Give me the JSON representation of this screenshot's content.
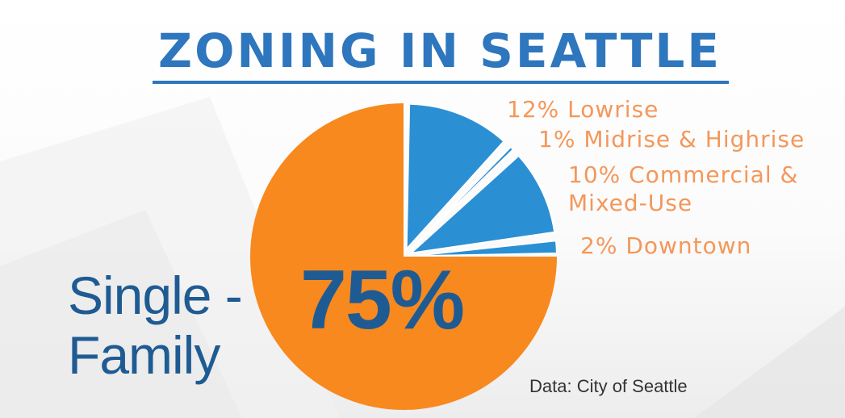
{
  "slide": {
    "title": "ZONING IN SEATTLE",
    "main_category_line1": "Single -",
    "main_category_line2": "Family",
    "main_percent": "75%",
    "source": "Data: City of Seattle"
  },
  "chart_data": {
    "type": "pie",
    "title": "ZONING IN SEATTLE",
    "slices": [
      {
        "label": "12% Lowrise",
        "value": 12,
        "color": "#2b8fd4",
        "exploded": true
      },
      {
        "label": "1% Midrise & Highrise",
        "value": 1,
        "color": "#2b8fd4",
        "exploded": true
      },
      {
        "label": "10% Commercial & Mixed-Use",
        "value": 10,
        "color": "#2b8fd4",
        "exploded": true
      },
      {
        "label": "2% Downtown",
        "value": 2,
        "color": "#2b8fd4",
        "exploded": true
      },
      {
        "label": "Single - Family 75%",
        "value": 75,
        "color": "#f7891f",
        "exploded": false
      }
    ],
    "labels": {
      "lowrise": "12% Lowrise",
      "midrise": "1% Midrise & Highrise",
      "commercial_line1": "10% Commercial &",
      "commercial_line2": "Mixed-Use",
      "downtown": "2% Downtown"
    },
    "start_angle_deg": 0,
    "direction": "clockwise",
    "colors": {
      "minor": "#2b8fd4",
      "major": "#f7891f",
      "label": "#f4975a",
      "text_dark": "#1f5b93"
    }
  }
}
